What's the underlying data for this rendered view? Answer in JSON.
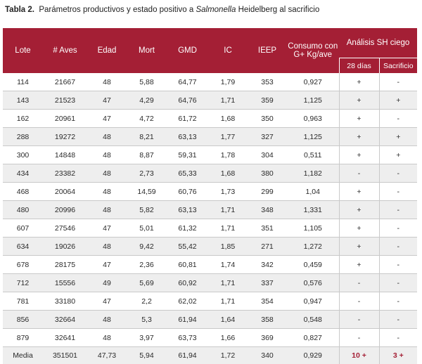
{
  "caption": {
    "label": "Tabla 2.",
    "text_before": "Parámetros productivos y estado positivo a",
    "italic": "Salmonella",
    "text_after": "Heidelberg al sacrificio"
  },
  "headers": {
    "lote": "Lote",
    "aves": "# Aves",
    "edad": "Edad",
    "mort": "Mort",
    "gmd": "GMD",
    "ic": "IC",
    "ieep": "IEEP",
    "consumo_l1": "Consumo con",
    "consumo_l2": "G+ Kg/ave",
    "analisis": "Análisis SH ciego",
    "dias28": "28 días",
    "sacrificio": "Sacrificio"
  },
  "rows": [
    {
      "lote": "114",
      "aves": "21667",
      "edad": "48",
      "mort": "5,88",
      "gmd": "64,77",
      "ic": "1,79",
      "ieep": "353",
      "consumo": "0,927",
      "d28": "+",
      "sac": "-"
    },
    {
      "lote": "143",
      "aves": "21523",
      "edad": "47",
      "mort": "4,29",
      "gmd": "64,76",
      "ic": "1,71",
      "ieep": "359",
      "consumo": "1,125",
      "d28": "+",
      "sac": "+"
    },
    {
      "lote": "162",
      "aves": "20961",
      "edad": "47",
      "mort": "4,72",
      "gmd": "61,72",
      "ic": "1,68",
      "ieep": "350",
      "consumo": "0,963",
      "d28": "+",
      "sac": "-"
    },
    {
      "lote": "288",
      "aves": "19272",
      "edad": "48",
      "mort": "8,21",
      "gmd": "63,13",
      "ic": "1,77",
      "ieep": "327",
      "consumo": "1,125",
      "d28": "+",
      "sac": "+"
    },
    {
      "lote": "300",
      "aves": "14848",
      "edad": "48",
      "mort": "8,87",
      "gmd": "59,31",
      "ic": "1,78",
      "ieep": "304",
      "consumo": "0,511",
      "d28": "+",
      "sac": "+"
    },
    {
      "lote": "434",
      "aves": "23382",
      "edad": "48",
      "mort": "2,73",
      "gmd": "65,33",
      "ic": "1,68",
      "ieep": "380",
      "consumo": "1,182",
      "d28": "-",
      "sac": "-"
    },
    {
      "lote": "468",
      "aves": "20064",
      "edad": "48",
      "mort": "14,59",
      "gmd": "60,76",
      "ic": "1,73",
      "ieep": "299",
      "consumo": "1,04",
      "d28": "+",
      "sac": "-"
    },
    {
      "lote": "480",
      "aves": "20996",
      "edad": "48",
      "mort": "5,82",
      "gmd": "63,13",
      "ic": "1,71",
      "ieep": "348",
      "consumo": "1,331",
      "d28": "+",
      "sac": "-"
    },
    {
      "lote": "607",
      "aves": "27546",
      "edad": "47",
      "mort": "5,01",
      "gmd": "61,32",
      "ic": "1,71",
      "ieep": "351",
      "consumo": "1,105",
      "d28": "+",
      "sac": "-"
    },
    {
      "lote": "634",
      "aves": "19026",
      "edad": "48",
      "mort": "9,42",
      "gmd": "55,42",
      "ic": "1,85",
      "ieep": "271",
      "consumo": "1,272",
      "d28": "+",
      "sac": "-"
    },
    {
      "lote": "678",
      "aves": "28175",
      "edad": "47",
      "mort": "2,36",
      "gmd": "60,81",
      "ic": "1,74",
      "ieep": "342",
      "consumo": "0,459",
      "d28": "+",
      "sac": "-"
    },
    {
      "lote": "712",
      "aves": "15556",
      "edad": "49",
      "mort": "5,69",
      "gmd": "60,92",
      "ic": "1,71",
      "ieep": "337",
      "consumo": "0,576",
      "d28": "-",
      "sac": "-"
    },
    {
      "lote": "781",
      "aves": "33180",
      "edad": "47",
      "mort": "2,2",
      "gmd": "62,02",
      "ic": "1,71",
      "ieep": "354",
      "consumo": "0,947",
      "d28": "-",
      "sac": "-"
    },
    {
      "lote": "856",
      "aves": "32664",
      "edad": "48",
      "mort": "5,3",
      "gmd": "61,94",
      "ic": "1,64",
      "ieep": "358",
      "consumo": "0,548",
      "d28": "-",
      "sac": "-"
    },
    {
      "lote": "879",
      "aves": "32641",
      "edad": "48",
      "mort": "3,97",
      "gmd": "63,73",
      "ic": "1,66",
      "ieep": "369",
      "consumo": "0,827",
      "d28": "-",
      "sac": "-"
    }
  ],
  "media": {
    "lote": "Media",
    "aves": "351501",
    "edad": "47,73",
    "mort": "5,94",
    "gmd": "61,94",
    "ic": "1,72",
    "ieep": "340",
    "consumo": "0,929",
    "d28": "10 +",
    "sac": "3 +"
  },
  "colors": {
    "accent": "#a41f35",
    "row_alt": "#eeeeee"
  }
}
